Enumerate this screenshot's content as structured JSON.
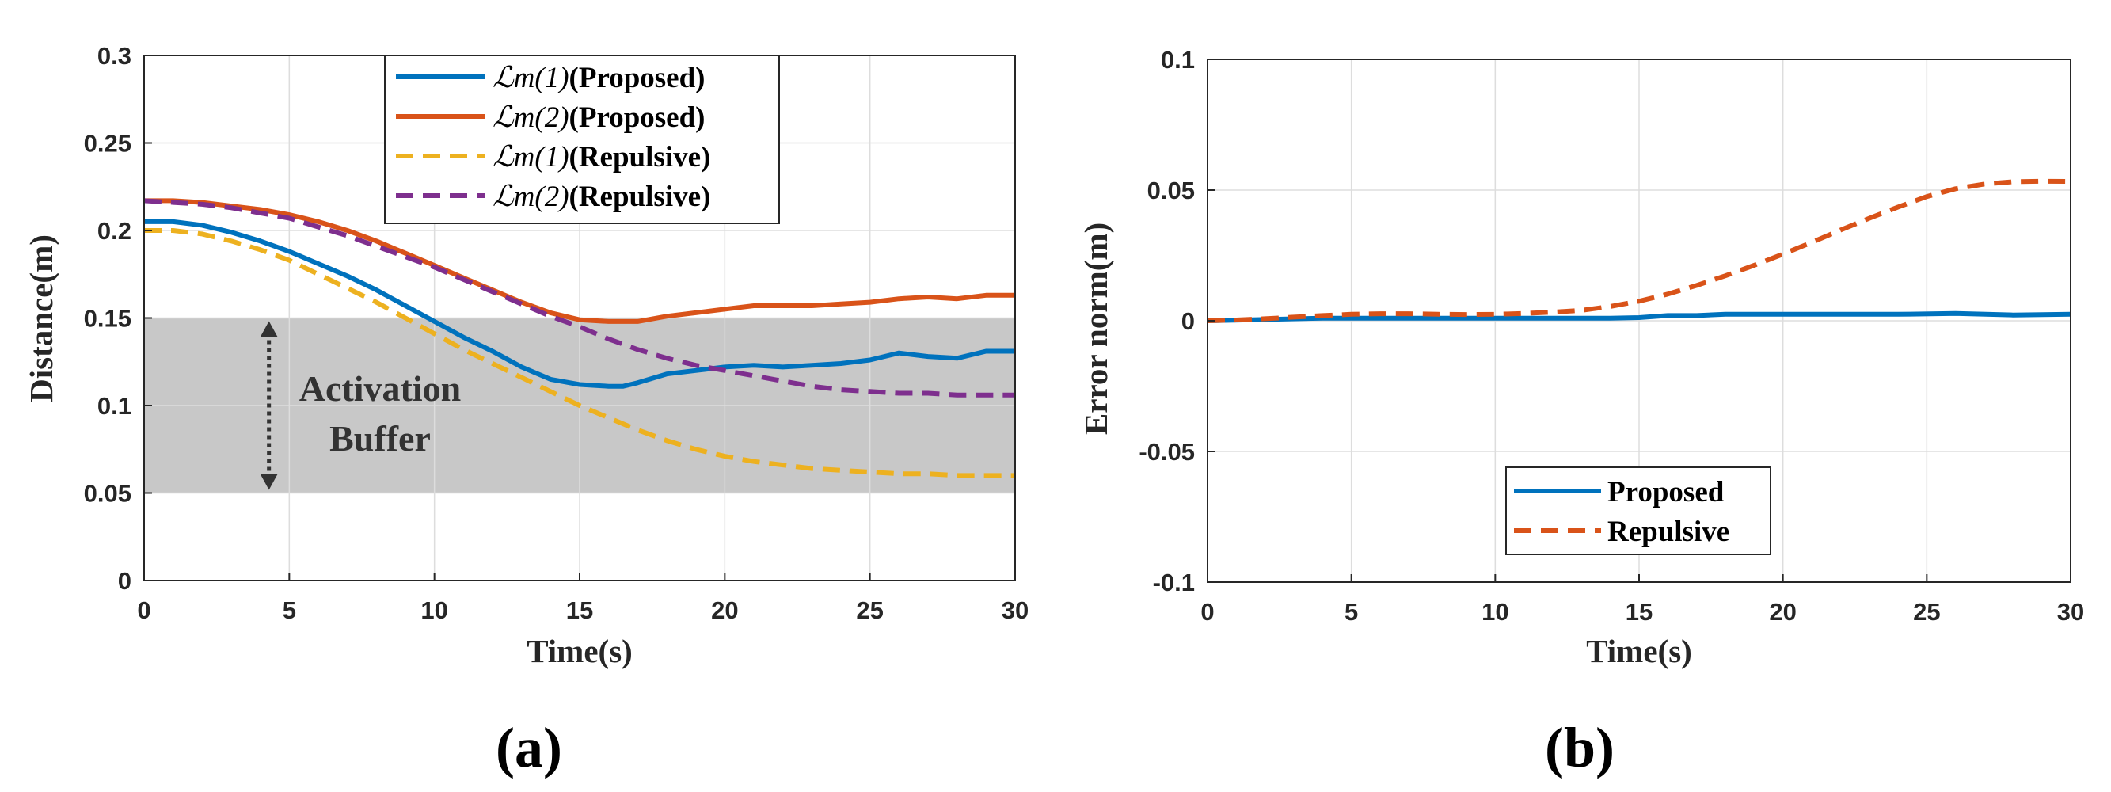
{
  "colors": {
    "blue": "#0072BD",
    "orange": "#D95319",
    "yellow": "#EDB120",
    "purple": "#7E2F8E",
    "buffer": "#c8c8c8",
    "arrow": "#333333"
  },
  "chart_data": [
    {
      "panel": "a",
      "panel_label": "(a)",
      "type": "line",
      "xlabel": "Time(s)",
      "ylabel": "Distance(m)",
      "xlim": [
        0,
        30
      ],
      "ylim": [
        0,
        0.3
      ],
      "xticks": [
        0,
        5,
        10,
        15,
        20,
        25,
        30
      ],
      "xtick_labels": [
        "0",
        "5",
        "10",
        "15",
        "20",
        "25",
        "30"
      ],
      "yticks": [
        0,
        0.05,
        0.1,
        0.15,
        0.2,
        0.25,
        0.3
      ],
      "ytick_labels": [
        "0",
        "0.05",
        "0.1",
        "0.15",
        "0.2",
        "0.25",
        "0.3"
      ],
      "grid": true,
      "legend_position": "top-center",
      "shaded_band": {
        "y_from": 0.05,
        "y_to": 0.15
      },
      "annotation": {
        "lines": [
          "Activation",
          "Buffer"
        ],
        "arrow_x": 4.3,
        "arrow_from": 0.05,
        "arrow_to": 0.15
      },
      "series": [
        {
          "name": "L_m(1)(Proposed)",
          "legend_ital": "ℒm(1)",
          "legend_bold": "(Proposed)",
          "color": "blue",
          "dash": "solid",
          "x": [
            0,
            1,
            2,
            3,
            4,
            5,
            6,
            7,
            8,
            9,
            10,
            11,
            12,
            13,
            14,
            15,
            16,
            16.5,
            17,
            18,
            19,
            20,
            21,
            22,
            23,
            24,
            25,
            26,
            27,
            28,
            29,
            30
          ],
          "y": [
            0.205,
            0.205,
            0.203,
            0.199,
            0.194,
            0.188,
            0.181,
            0.174,
            0.166,
            0.157,
            0.148,
            0.139,
            0.131,
            0.122,
            0.115,
            0.112,
            0.111,
            0.111,
            0.113,
            0.118,
            0.12,
            0.122,
            0.123,
            0.122,
            0.123,
            0.124,
            0.126,
            0.13,
            0.128,
            0.127,
            0.131,
            0.131
          ]
        },
        {
          "name": "L_m(2)(Proposed)",
          "legend_ital": "ℒm(2)",
          "legend_bold": "(Proposed)",
          "color": "orange",
          "dash": "solid",
          "x": [
            0,
            1,
            2,
            3,
            4,
            5,
            6,
            7,
            8,
            9,
            10,
            11,
            12,
            13,
            14,
            15,
            16,
            17,
            18,
            19,
            20,
            21,
            22,
            23,
            24,
            25,
            26,
            27,
            28,
            29,
            30
          ],
          "y": [
            0.217,
            0.217,
            0.216,
            0.214,
            0.212,
            0.209,
            0.205,
            0.2,
            0.194,
            0.187,
            0.18,
            0.173,
            0.166,
            0.159,
            0.153,
            0.149,
            0.148,
            0.148,
            0.151,
            0.153,
            0.155,
            0.157,
            0.157,
            0.157,
            0.158,
            0.159,
            0.161,
            0.162,
            0.161,
            0.163,
            0.163
          ]
        },
        {
          "name": "L_m(1)(Repulsive)",
          "legend_ital": "ℒm(1)",
          "legend_bold": "(Repulsive)",
          "color": "yellow",
          "dash": "dashed",
          "x": [
            0,
            1,
            2,
            3,
            4,
            5,
            6,
            7,
            8,
            9,
            10,
            11,
            12,
            13,
            14,
            15,
            16,
            17,
            18,
            19,
            20,
            21,
            22,
            23,
            24,
            25,
            26,
            27,
            28,
            29,
            30
          ],
          "y": [
            0.2,
            0.2,
            0.198,
            0.194,
            0.189,
            0.183,
            0.175,
            0.167,
            0.159,
            0.15,
            0.141,
            0.132,
            0.124,
            0.116,
            0.108,
            0.1,
            0.093,
            0.086,
            0.08,
            0.075,
            0.071,
            0.068,
            0.066,
            0.064,
            0.063,
            0.062,
            0.061,
            0.061,
            0.06,
            0.06,
            0.06
          ]
        },
        {
          "name": "L_m(2)(Repulsive)",
          "legend_ital": "ℒm(2)",
          "legend_bold": "(Repulsive)",
          "color": "purple",
          "dash": "dashed",
          "x": [
            0,
            1,
            2,
            3,
            4,
            5,
            6,
            7,
            8,
            9,
            10,
            11,
            12,
            13,
            14,
            15,
            16,
            17,
            18,
            19,
            20,
            21,
            22,
            23,
            24,
            25,
            26,
            27,
            28,
            29,
            30
          ],
          "y": [
            0.217,
            0.216,
            0.215,
            0.213,
            0.21,
            0.207,
            0.202,
            0.197,
            0.191,
            0.185,
            0.179,
            0.172,
            0.165,
            0.158,
            0.151,
            0.145,
            0.138,
            0.132,
            0.127,
            0.123,
            0.12,
            0.117,
            0.114,
            0.111,
            0.109,
            0.108,
            0.107,
            0.107,
            0.106,
            0.106,
            0.106
          ]
        }
      ]
    },
    {
      "panel": "b",
      "panel_label": "(b)",
      "type": "line",
      "xlabel": "Time(s)",
      "ylabel": "Error norm(m)",
      "xlim": [
        0,
        30
      ],
      "ylim": [
        -0.1,
        0.1
      ],
      "xticks": [
        0,
        5,
        10,
        15,
        20,
        25,
        30
      ],
      "xtick_labels": [
        "0",
        "5",
        "10",
        "15",
        "20",
        "25",
        "30"
      ],
      "yticks": [
        -0.1,
        -0.05,
        0,
        0.05,
        0.1
      ],
      "ytick_labels": [
        "-0.1",
        "-0.05",
        "0",
        "0.05",
        "0.1"
      ],
      "grid": true,
      "legend_position": "bottom-center",
      "series": [
        {
          "name": "Proposed",
          "color": "blue",
          "dash": "solid",
          "x": [
            0,
            2,
            4,
            6,
            8,
            10,
            12,
            14,
            15,
            16,
            17,
            18,
            20,
            22,
            24,
            26,
            28,
            30
          ],
          "y": [
            0,
            0.0005,
            0.001,
            0.001,
            0.001,
            0.001,
            0.001,
            0.001,
            0.0012,
            0.002,
            0.002,
            0.0025,
            0.0025,
            0.0025,
            0.0025,
            0.0028,
            0.0022,
            0.0025
          ]
        },
        {
          "name": "Repulsive",
          "color": "orange",
          "dash": "dashed",
          "x": [
            0,
            1,
            2,
            3,
            4,
            5,
            6,
            7,
            8,
            9,
            10,
            11,
            12,
            13,
            14,
            15,
            16,
            17,
            18,
            19,
            20,
            21,
            22,
            23,
            24,
            25,
            26,
            27,
            28,
            29,
            30
          ],
          "y": [
            0,
            0.0003,
            0.0008,
            0.0014,
            0.002,
            0.0025,
            0.0027,
            0.0027,
            0.0025,
            0.0024,
            0.0025,
            0.0028,
            0.0033,
            0.004,
            0.0055,
            0.0075,
            0.0102,
            0.0135,
            0.0172,
            0.0212,
            0.0255,
            0.03,
            0.0347,
            0.0392,
            0.0435,
            0.0475,
            0.0505,
            0.0523,
            0.0532,
            0.0534,
            0.0533
          ]
        }
      ]
    }
  ]
}
